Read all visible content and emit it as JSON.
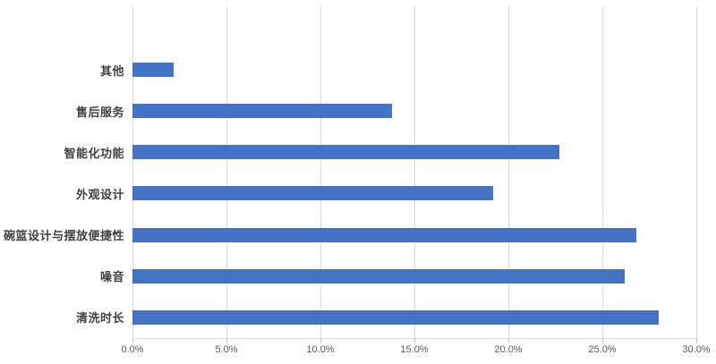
{
  "chart_data": {
    "type": "bar",
    "orientation": "horizontal",
    "title": "",
    "xlabel": "",
    "ylabel": "",
    "categories": [
      "其他",
      "售后服务",
      "智能化功能",
      "外观设计",
      "碗篮设计与摆放便捷性",
      "噪音",
      "清洗时长"
    ],
    "categories_order": "top-to-bottom",
    "values": [
      2.2,
      13.8,
      22.7,
      19.2,
      26.8,
      26.2,
      28.0
    ],
    "value_unit": "%",
    "x_tick_labels": [
      "0.0%",
      "5.0%",
      "10.0%",
      "15.0%",
      "20.0%",
      "25.0%",
      "30.0%"
    ],
    "xlim": [
      0,
      30
    ],
    "grid": "vertical",
    "legend": "none",
    "colors": {
      "bar": "#4472c4",
      "gridline": "#d9d9d9",
      "category_label": "#404040",
      "tick_label": "#595959",
      "tick_mark": "#bfbfbf"
    }
  }
}
